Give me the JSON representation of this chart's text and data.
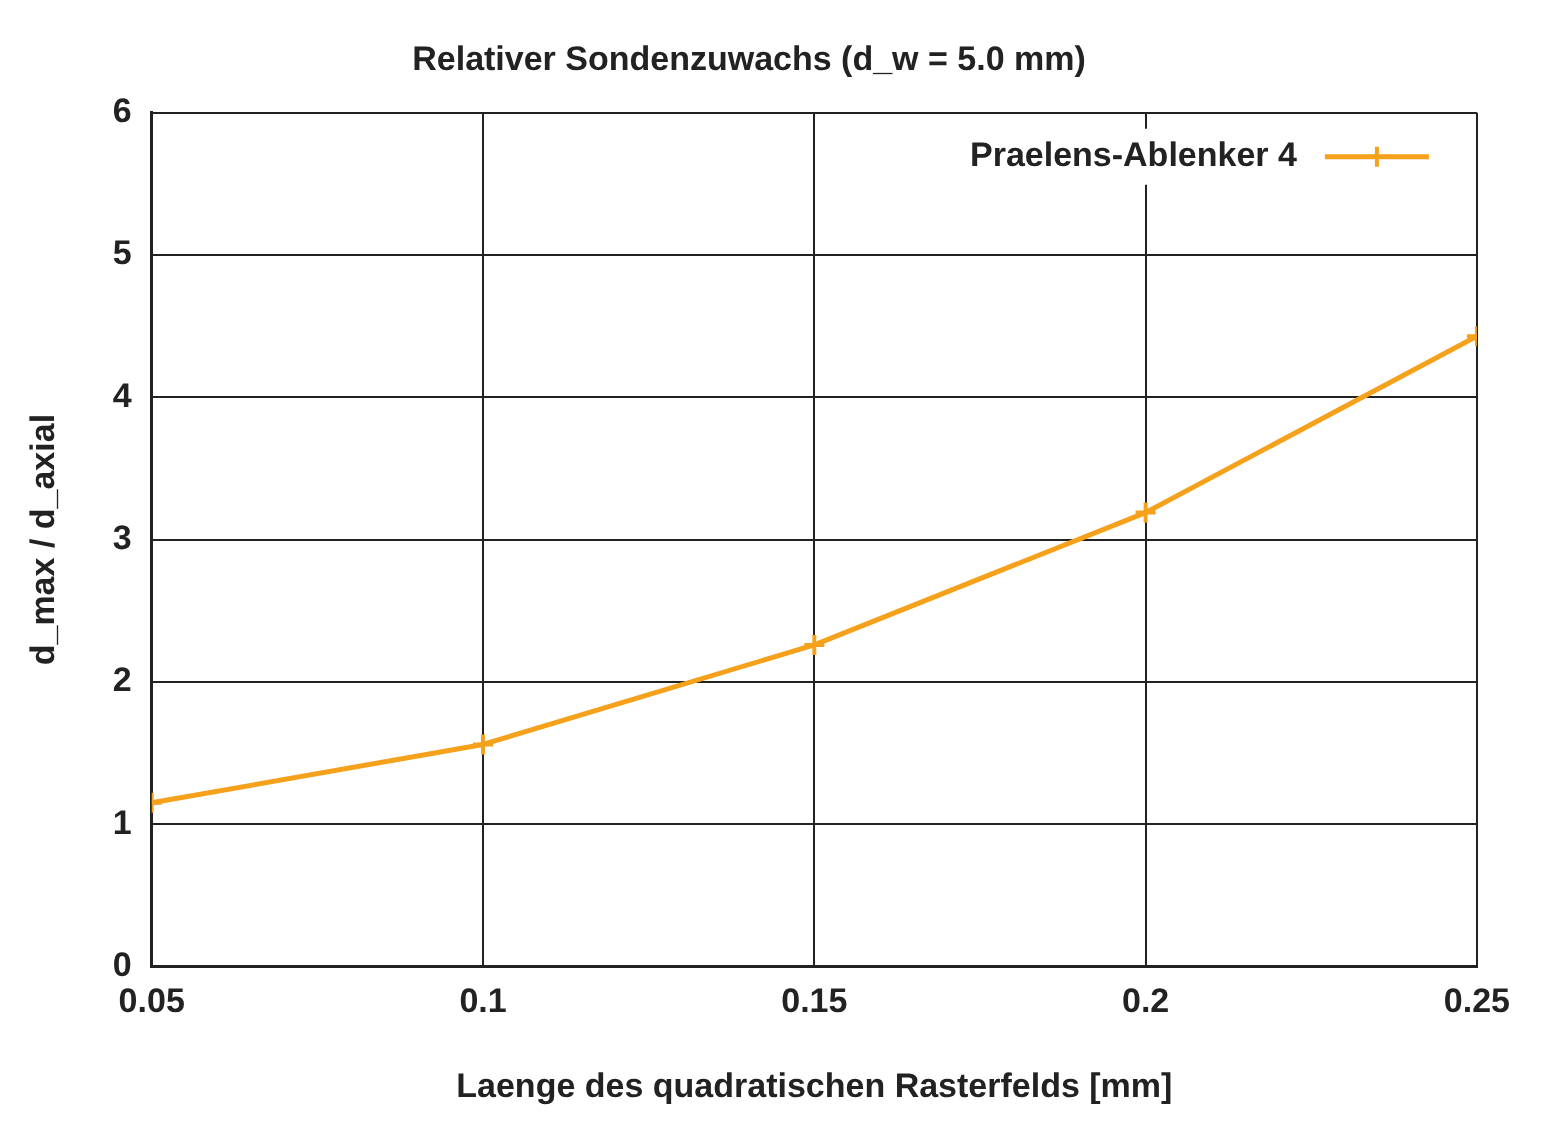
{
  "chart_data": {
    "type": "line",
    "title": "Relativer Sondenzuwachs (d_w = 5.0 mm)",
    "xlabel": "Laenge des quadratischen Rasterfelds [mm]",
    "ylabel": "d_max / d_axial",
    "x": [
      0.05,
      0.1,
      0.15,
      0.2,
      0.25
    ],
    "series": [
      {
        "name": "Praelens-Ablenker 4",
        "color": "#f5a11c",
        "values": [
          1.15,
          1.56,
          2.26,
          3.19,
          4.43
        ]
      }
    ],
    "xlim": [
      0.05,
      0.25
    ],
    "xticks": [
      0.05,
      0.1,
      0.15,
      0.2,
      0.25
    ],
    "ylim": [
      0,
      6
    ],
    "yticks": [
      0,
      1,
      2,
      3,
      4,
      5,
      6
    ],
    "grid": true,
    "legend": "top right",
    "marker": "cross",
    "line_style": "solid"
  }
}
